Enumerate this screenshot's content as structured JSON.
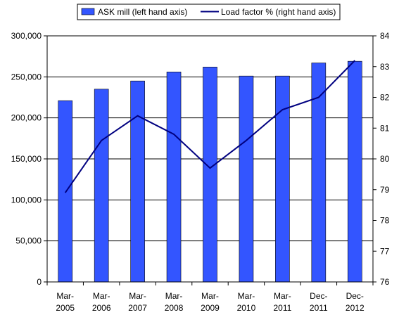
{
  "chart_data": {
    "type": "bar",
    "categories": [
      "Mar-\n2005",
      "Mar-\n2006",
      "Mar-\n2007",
      "Mar-\n2008",
      "Mar-\n2009",
      "Mar-\n2010",
      "Mar-\n2011",
      "Dec-\n2011",
      "Dec-\n2012"
    ],
    "series": [
      {
        "name": "ASK mill (left hand axis)",
        "type": "bar",
        "axis": "left",
        "color": "#3355ff",
        "values": [
          221000,
          235000,
          245000,
          256000,
          262000,
          251000,
          251000,
          267000,
          269000
        ]
      },
      {
        "name": "Load factor % (right hand axis)",
        "type": "line",
        "axis": "right",
        "color": "#000080",
        "values": [
          78.9,
          80.6,
          81.4,
          80.8,
          79.7,
          80.6,
          81.6,
          82.0,
          83.2
        ]
      }
    ],
    "y_left": {
      "range": [
        0,
        300000
      ],
      "ticks": [
        0,
        50000,
        100000,
        150000,
        200000,
        250000,
        300000
      ],
      "tick_labels": [
        "0",
        "50,000",
        "100,000",
        "150,000",
        "200,000",
        "250,000",
        "300,000"
      ]
    },
    "y_right": {
      "range": [
        76,
        84
      ],
      "ticks": [
        76,
        77,
        78,
        79,
        80,
        81,
        82,
        83,
        84
      ],
      "tick_labels": [
        "76",
        "77",
        "78",
        "79",
        "80",
        "81",
        "82",
        "83",
        "84"
      ]
    },
    "grid": true,
    "legend_position": "top"
  }
}
